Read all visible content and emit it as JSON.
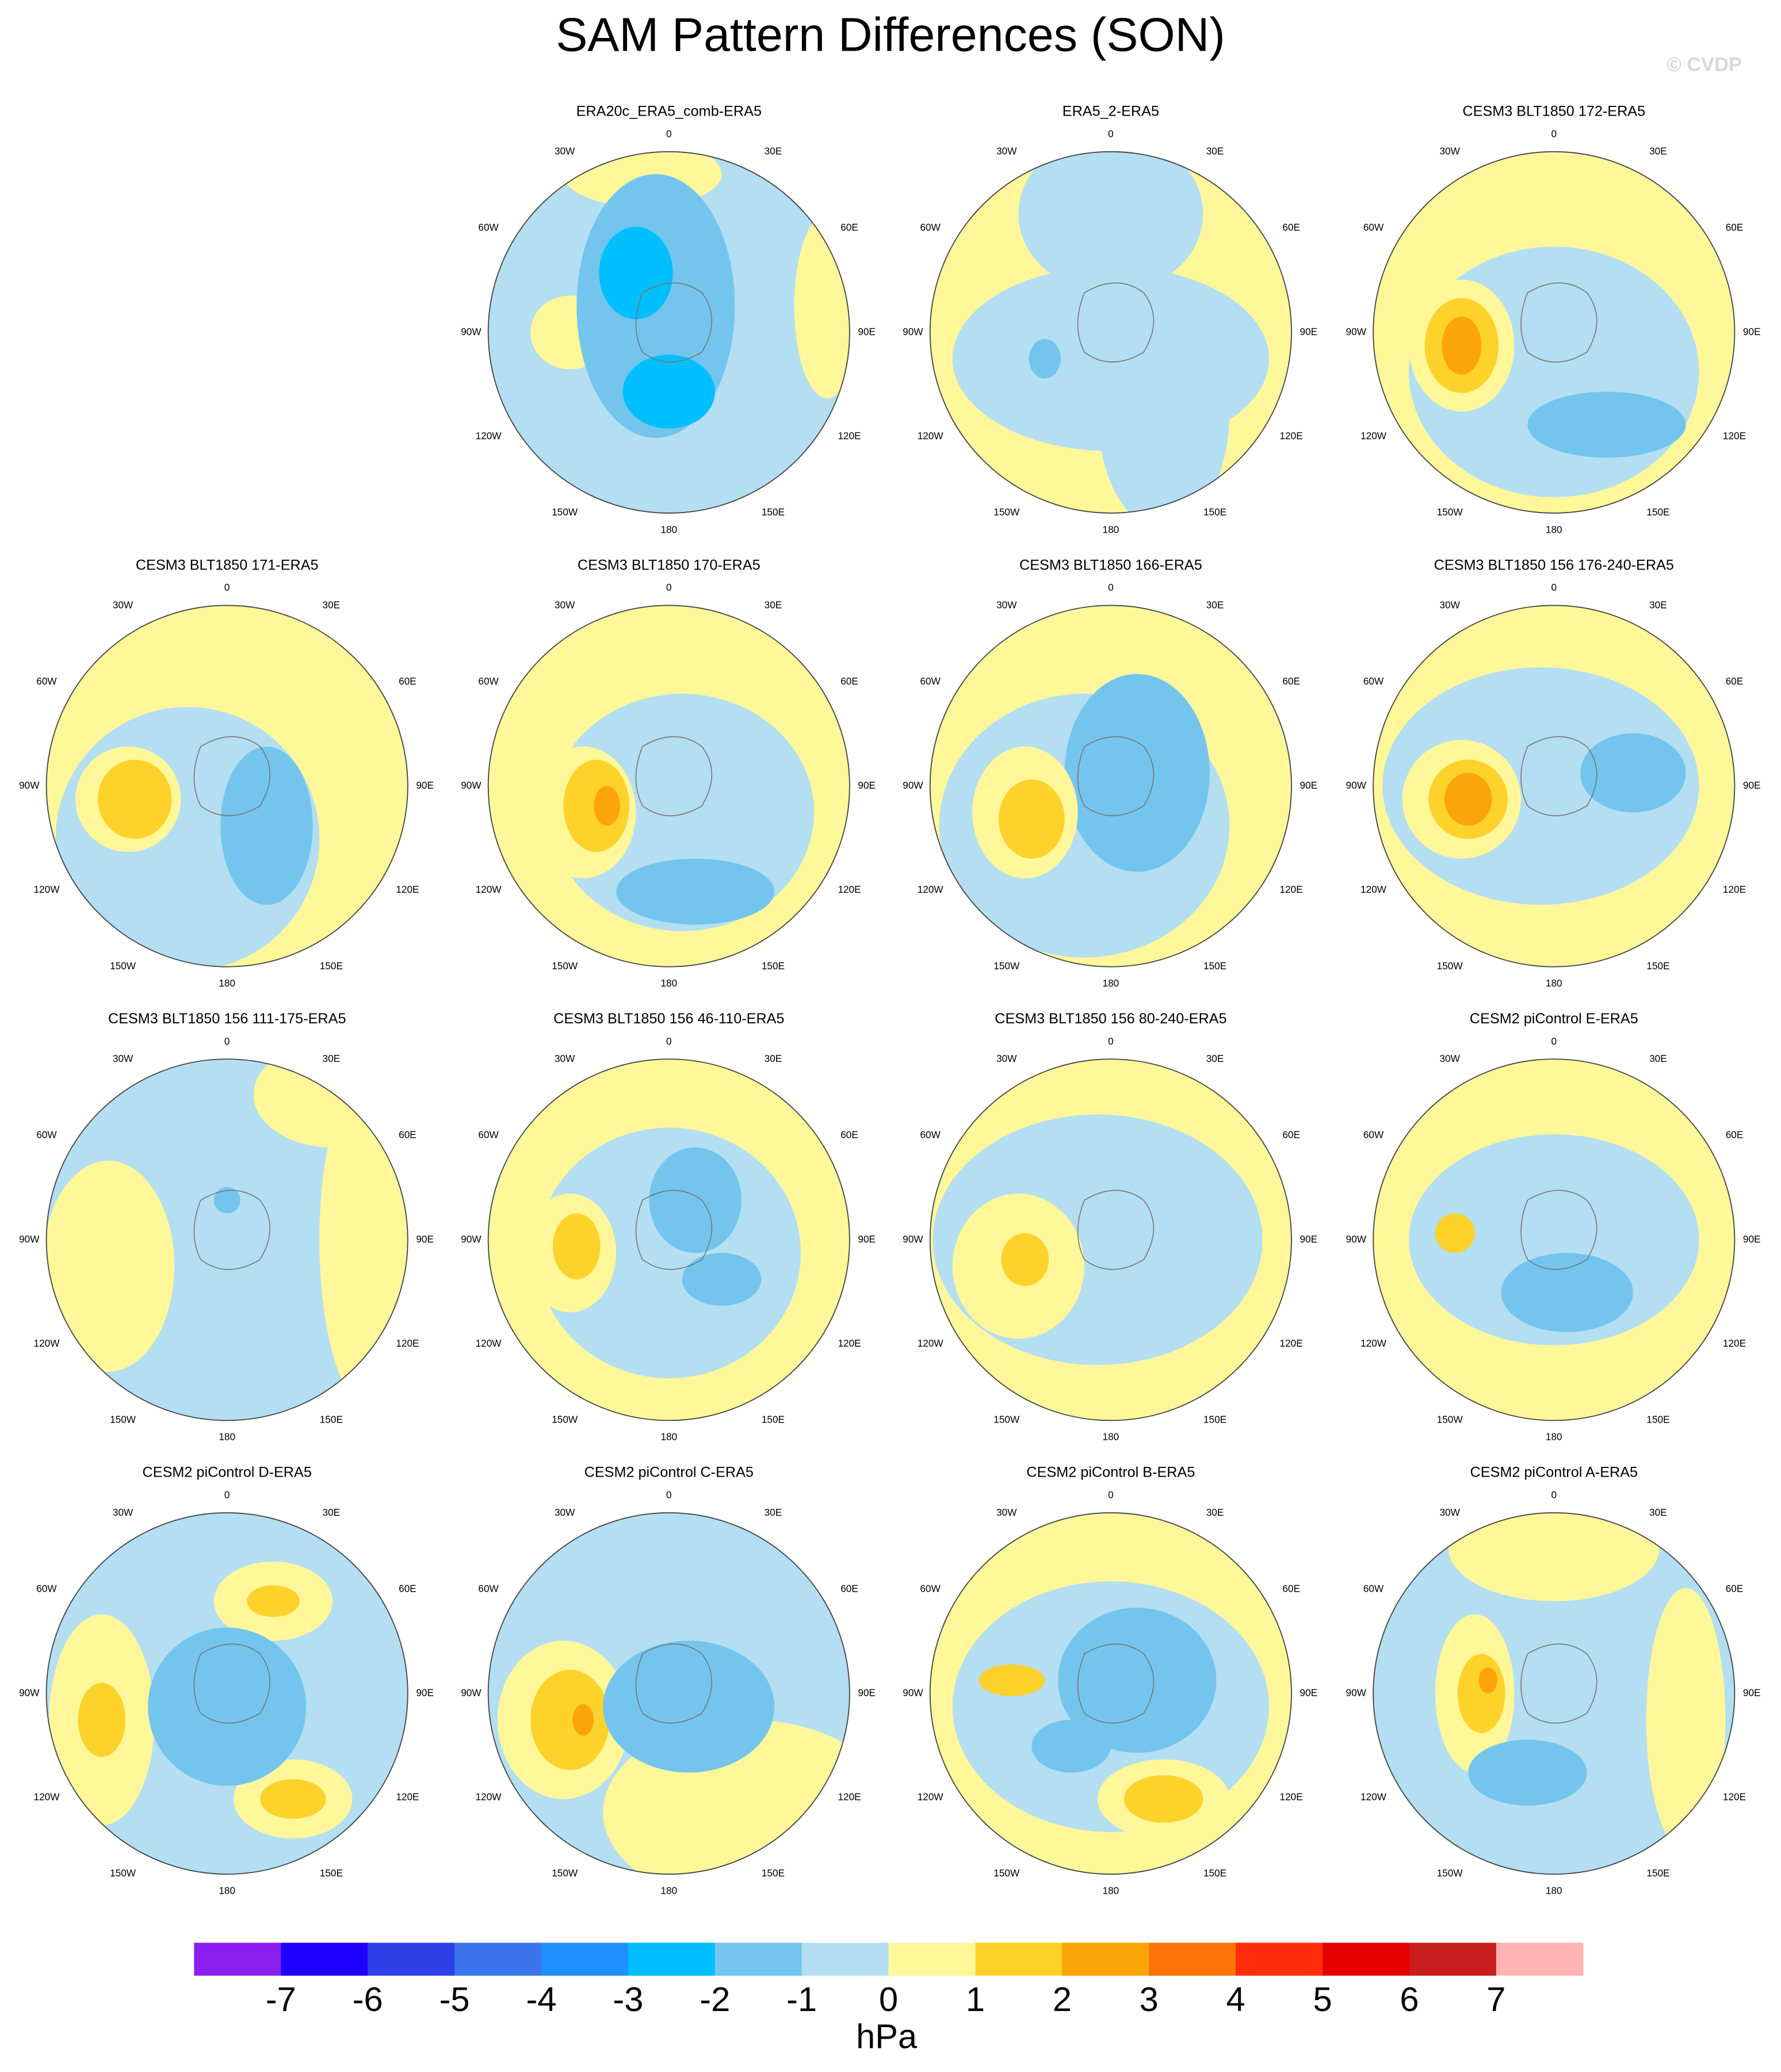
{
  "title": "SAM Pattern Differences (SON)",
  "watermark": "© CVDP",
  "panels": [
    {
      "title": "ERA20c_ERA5_comb-ERA5"
    },
    {
      "title": "ERA5_2-ERA5"
    },
    {
      "title": "CESM3 BLT1850 172-ERA5"
    },
    {
      "title": "CESM3 BLT1850 171-ERA5"
    },
    {
      "title": "CESM3 BLT1850 170-ERA5"
    },
    {
      "title": "CESM3 BLT1850 166-ERA5"
    },
    {
      "title": "CESM3 BLT1850 156 176-240-ERA5"
    },
    {
      "title": "CESM3 BLT1850 156 111-175-ERA5"
    },
    {
      "title": "CESM3 BLT1850 156 46-110-ERA5"
    },
    {
      "title": "CESM3 BLT1850 156 80-240-ERA5"
    },
    {
      "title": "CESM2 piControl E-ERA5"
    },
    {
      "title": "CESM2 piControl D-ERA5"
    },
    {
      "title": "CESM2 piControl C-ERA5"
    },
    {
      "title": "CESM2 piControl B-ERA5"
    },
    {
      "title": "CESM2 piControl A-ERA5"
    }
  ],
  "longitude_labels": [
    "0",
    "30E",
    "60E",
    "90E",
    "120E",
    "150E",
    "180",
    "150W",
    "120W",
    "90W",
    "60W",
    "30W"
  ],
  "colorbar": {
    "colors": [
      "#8a1ff0",
      "#1e00ff",
      "#2d41e6",
      "#3a73ea",
      "#1e90ff",
      "#00bfff",
      "#73c5ee",
      "#b4def2",
      "#fff799",
      "#fdd22a",
      "#fca50a",
      "#f97306",
      "#ff2d0a",
      "#e60000",
      "#c81e1e",
      "#ffb4b4"
    ],
    "ticks": [
      -7,
      -6,
      -5,
      -4,
      -3,
      -2,
      -1,
      0,
      1,
      2,
      3,
      4,
      5,
      6,
      7
    ],
    "unit": "hPa"
  }
}
